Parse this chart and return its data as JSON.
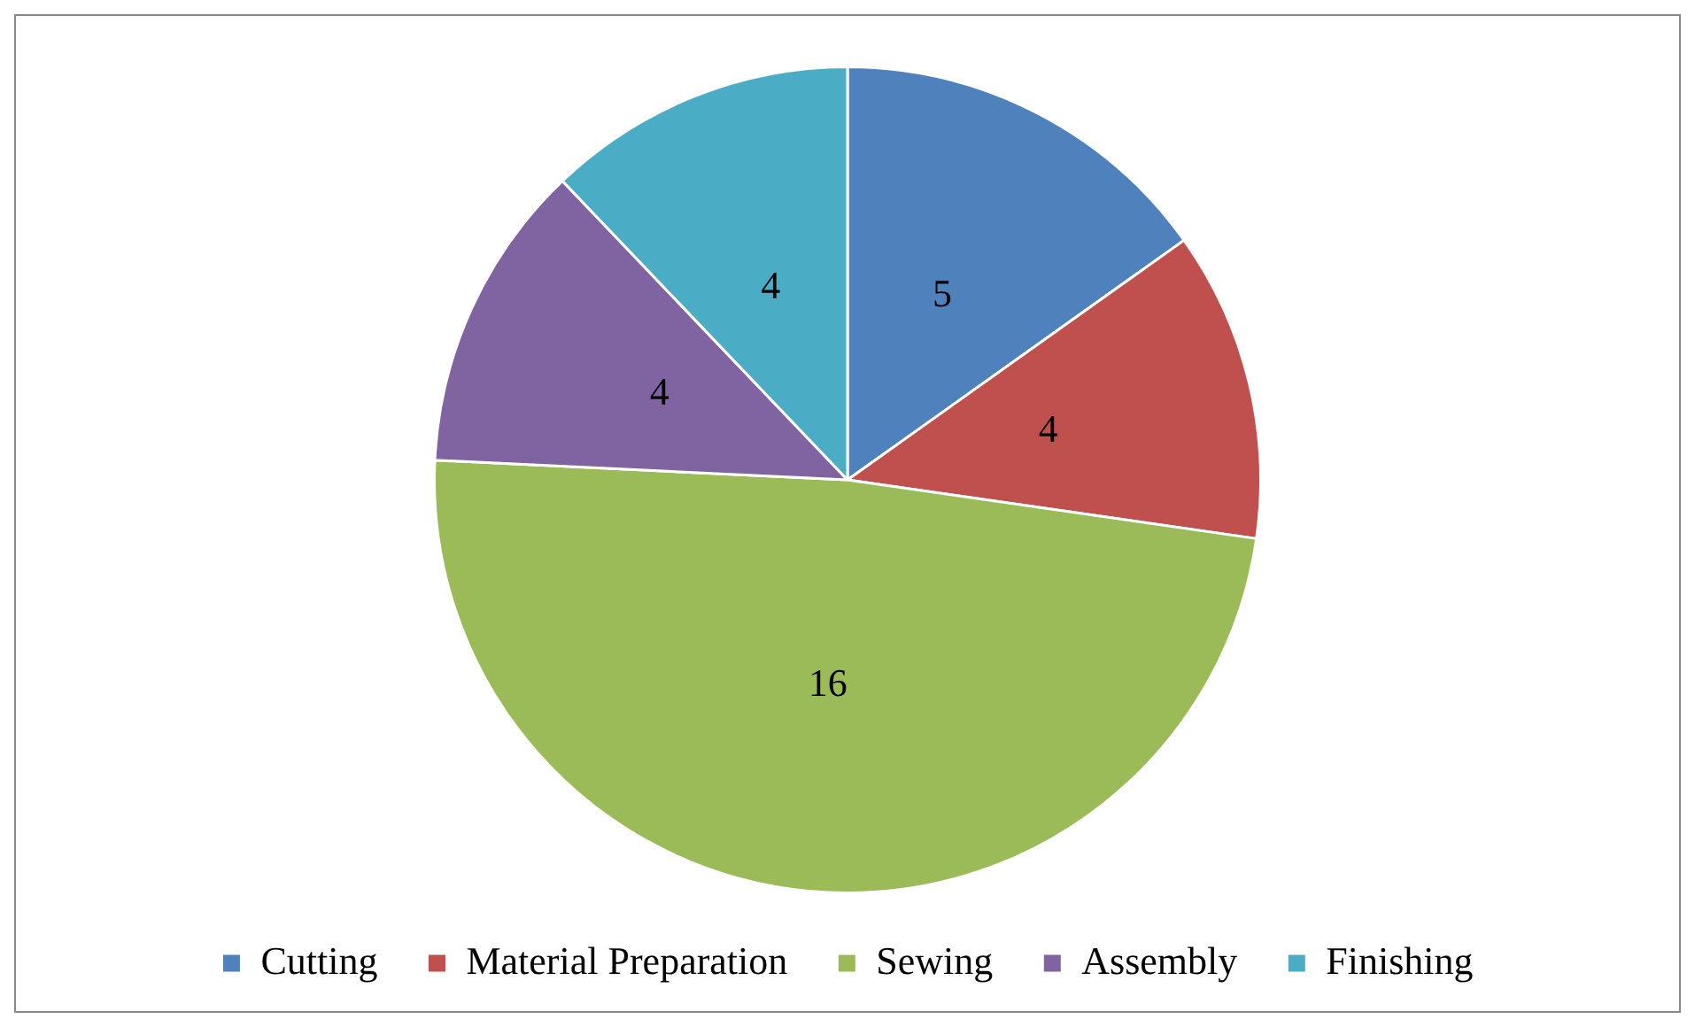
{
  "chart_data": {
    "type": "pie",
    "categories": [
      "Cutting",
      "Material Preparation",
      "Sewing",
      "Assembly",
      "Finishing"
    ],
    "values": [
      5,
      4,
      16,
      4,
      4
    ],
    "colors": [
      "#4f81bd",
      "#c0504d",
      "#9bbb59",
      "#8064a2",
      "#4bacc6"
    ],
    "data_labels": true,
    "legend": "bottom"
  }
}
